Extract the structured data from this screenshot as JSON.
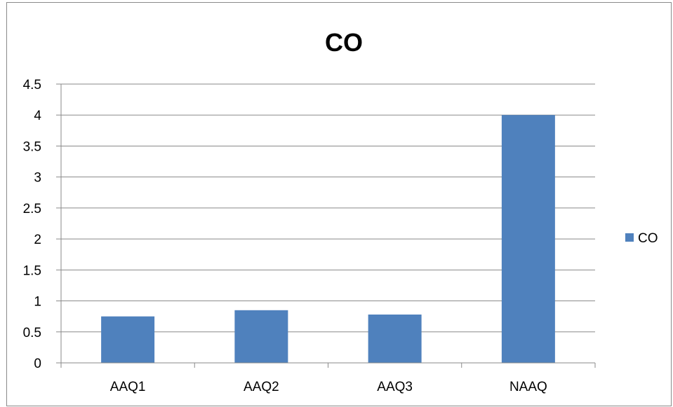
{
  "chart_data": {
    "type": "bar",
    "title": "CO",
    "categories": [
      "AAQ1",
      "AAQ2",
      "AAQ3",
      "NAAQ"
    ],
    "series": [
      {
        "name": "CO",
        "values": [
          0.75,
          0.85,
          0.78,
          4.0
        ]
      }
    ],
    "ylim": [
      0,
      4.5
    ],
    "yticks": [
      0,
      0.5,
      1,
      1.5,
      2,
      2.5,
      3,
      3.5,
      4,
      4.5
    ],
    "ytick_labels": [
      "0",
      "0.5",
      "1",
      "1.5",
      "2",
      "2.5",
      "3",
      "3.5",
      "4",
      "4.5"
    ],
    "xlabel": "",
    "ylabel": "",
    "grid": true,
    "legend": "right",
    "colors": {
      "bar": "#4f81bd",
      "grid": "#8a8a8a",
      "axis": "#8a8a8a"
    }
  }
}
